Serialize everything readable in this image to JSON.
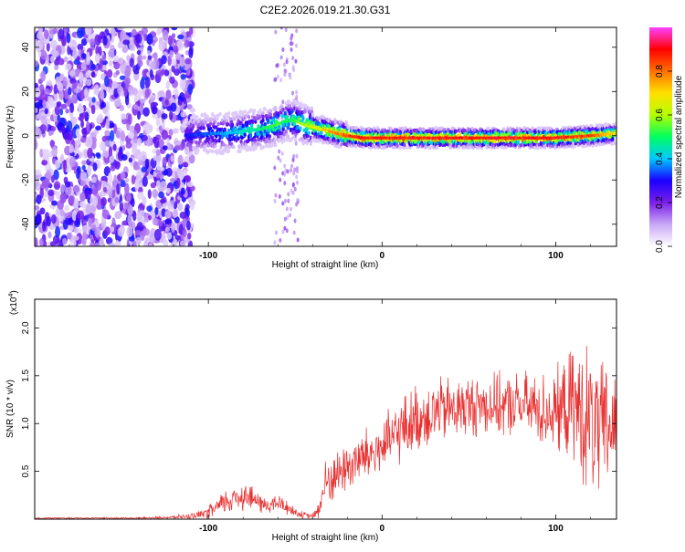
{
  "title": "C2E2.2026.019.21.30.G31",
  "chart_data": [
    {
      "type": "heatmap",
      "title": "C2E2.2026.019.21.30.G31",
      "xlabel": "Height of straight line (km)",
      "ylabel": "Frequency (Hz)",
      "xlim": [
        -200,
        135
      ],
      "ylim": [
        -50,
        49
      ],
      "xticks": [
        -100,
        0,
        100
      ],
      "xtick_labels": [
        "-100",
        "0",
        "100"
      ],
      "yticks": [
        -40,
        -20,
        0,
        20,
        40
      ],
      "ytick_labels": [
        "-40",
        "-20",
        "0",
        "20",
        "40"
      ],
      "colorbar": {
        "label": "Normalized spectral amplitude",
        "range": [
          0.0,
          1.0
        ],
        "ticks": [
          0.0,
          0.2,
          0.4,
          0.6,
          0.8
        ],
        "tick_labels": [
          "0.0",
          "0.2",
          "0.4",
          "0.6",
          "0.8"
        ],
        "colors": [
          "#ffffff",
          "#c9a8f5",
          "#7a1fe8",
          "#1a00ff",
          "#00c8ff",
          "#00ff60",
          "#b4ff00",
          "#ffe000",
          "#ff7000",
          "#ff0000",
          "#ff40ff"
        ]
      },
      "ridge": {
        "x": [
          -115,
          -100,
          -90,
          -80,
          -70,
          -60,
          -55,
          -50,
          -45,
          -40,
          -30,
          -20,
          -10,
          0,
          20,
          40,
          60,
          80,
          100,
          120,
          135
        ],
        "frequency": [
          0,
          1,
          1,
          2,
          3,
          5,
          7,
          7,
          5,
          4,
          2,
          0,
          -1,
          -1,
          -1,
          -1,
          -1,
          -1,
          -1,
          0,
          1
        ],
        "amplitude": [
          0.3,
          0.35,
          0.4,
          0.45,
          0.5,
          0.55,
          0.5,
          0.55,
          0.6,
          0.65,
          0.75,
          0.85,
          0.9,
          0.9,
          0.9,
          0.9,
          0.9,
          0.9,
          0.9,
          0.85,
          0.7
        ]
      },
      "noise_region": [
        -200,
        -115
      ]
    },
    {
      "type": "line",
      "xlabel": "Height of straight line (km)",
      "ylabel": "SNR (10 * v/v)",
      "y_multiplier": "(x10",
      "y_multiplier_exp": "4",
      "y_multiplier_close": ")",
      "xlim": [
        -200,
        135
      ],
      "ylim": [
        0,
        2.3
      ],
      "xticks": [
        -100,
        0,
        100
      ],
      "xtick_labels": [
        "-100",
        "0",
        "100"
      ],
      "yticks": [
        0.5,
        1.0,
        1.5,
        2.0
      ],
      "ytick_labels": [
        "0.5",
        "1.0",
        "1.5",
        "2.0"
      ],
      "color": "#e83030",
      "series": [
        {
          "name": "SNR",
          "x": [
            -200,
            -180,
            -160,
            -140,
            -120,
            -105,
            -100,
            -95,
            -90,
            -85,
            -80,
            -75,
            -70,
            -65,
            -60,
            -55,
            -50,
            -45,
            -40,
            -37,
            -35,
            -33,
            -30,
            -25,
            -20,
            -15,
            -10,
            -5,
            0,
            5,
            10,
            20,
            30,
            40,
            50,
            60,
            70,
            80,
            90,
            100,
            110,
            115,
            120,
            125,
            130,
            135
          ],
          "y": [
            0.01,
            0.01,
            0.01,
            0.01,
            0.02,
            0.04,
            0.07,
            0.12,
            0.18,
            0.22,
            0.26,
            0.22,
            0.16,
            0.14,
            0.17,
            0.13,
            0.07,
            0.04,
            0.03,
            0.08,
            0.2,
            0.35,
            0.42,
            0.48,
            0.55,
            0.6,
            0.65,
            0.7,
            0.75,
            0.82,
            0.92,
            1.05,
            1.12,
            1.15,
            1.18,
            1.2,
            1.18,
            1.2,
            1.15,
            1.12,
            1.2,
            1.1,
            1.0,
            0.9,
            0.95,
            1.0
          ],
          "spread": [
            0.01,
            0.01,
            0.01,
            0.01,
            0.02,
            0.05,
            0.08,
            0.12,
            0.16,
            0.18,
            0.2,
            0.16,
            0.12,
            0.1,
            0.12,
            0.1,
            0.06,
            0.04,
            0.03,
            0.12,
            0.25,
            0.3,
            0.3,
            0.3,
            0.32,
            0.35,
            0.35,
            0.35,
            0.35,
            0.38,
            0.4,
            0.42,
            0.42,
            0.4,
            0.38,
            0.38,
            0.38,
            0.4,
            0.45,
            0.5,
            0.7,
            0.85,
            0.95,
            0.85,
            0.8,
            0.75
          ]
        }
      ]
    }
  ]
}
